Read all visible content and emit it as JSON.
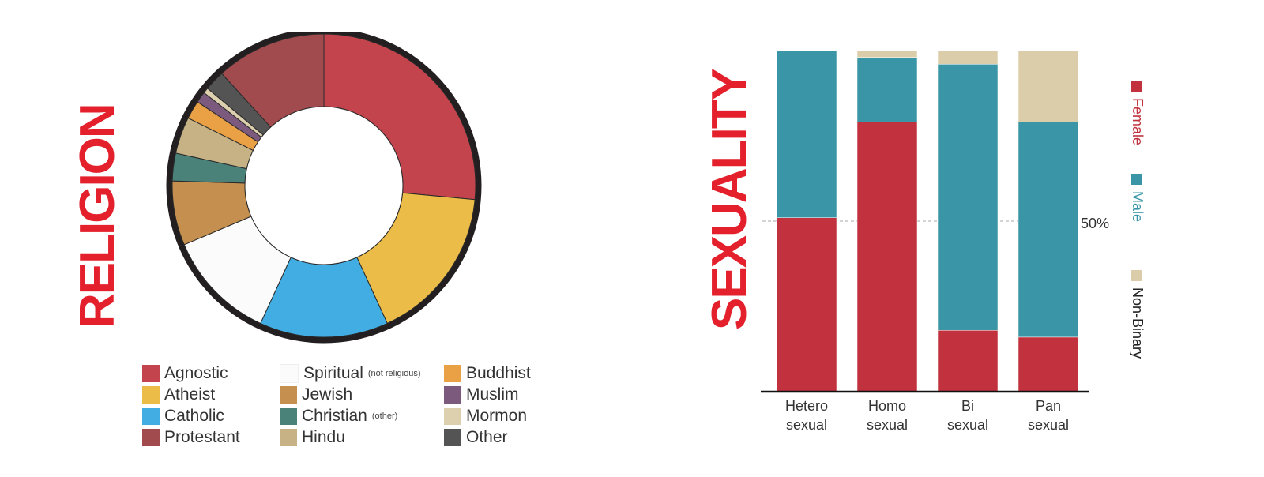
{
  "religion": {
    "title": "RELIGION",
    "chart_data": {
      "type": "pie",
      "categories": [
        "Protestant",
        "Agnostic",
        "Atheist",
        "Catholic",
        "Spiritual",
        "Jewish",
        "Christian",
        "Hindu",
        "Buddhist",
        "Muslim",
        "Mormon",
        "Other"
      ],
      "values": [
        12,
        27,
        17,
        14,
        12,
        7,
        3,
        4,
        2,
        1.2,
        0.6,
        2.2
      ],
      "colors": [
        "#a24b4e",
        "#c3444d",
        "#ecbc48",
        "#42ade2",
        "#fbfbfb",
        "#c5904f",
        "#4a8179",
        "#c7b286",
        "#eaa045",
        "#7b5a7e",
        "#ddd0af",
        "#545454"
      ]
    },
    "legend": [
      {
        "label": "Agnostic",
        "note": "",
        "color": "#c3444d"
      },
      {
        "label": "Atheist",
        "note": "",
        "color": "#ecbc48"
      },
      {
        "label": "Catholic",
        "note": "",
        "color": "#42ade2"
      },
      {
        "label": "Protestant",
        "note": "",
        "color": "#a24b4e"
      },
      {
        "label": "Spiritual",
        "note": "(not religious)",
        "color": "#fbfbfb"
      },
      {
        "label": "Jewish",
        "note": "",
        "color": "#c5904f"
      },
      {
        "label": "Christian",
        "note": "(other)",
        "color": "#4a8179"
      },
      {
        "label": "Hindu",
        "note": "",
        "color": "#c7b286"
      },
      {
        "label": "Buddhist",
        "note": "",
        "color": "#eaa045"
      },
      {
        "label": "Muslim",
        "note": "",
        "color": "#7b5a7e"
      },
      {
        "label": "Mormon",
        "note": "",
        "color": "#ddd0af"
      },
      {
        "label": "Other",
        "note": "",
        "color": "#545454"
      }
    ]
  },
  "sexuality": {
    "title": "SEXUALITY",
    "reference_label": "50%",
    "chart_data": {
      "type": "bar",
      "stacked": true,
      "categories": [
        [
          "Hetero",
          "sexual"
        ],
        [
          "Homo",
          "sexual"
        ],
        [
          "Bi",
          "sexual"
        ],
        [
          "Pan",
          "sexual"
        ]
      ],
      "series": [
        {
          "name": "Female",
          "values": [
            51,
            79,
            18,
            16
          ],
          "color": "#c1323e"
        },
        {
          "name": "Male",
          "values": [
            49,
            19,
            78,
            63
          ],
          "color": "#3a96a6"
        },
        {
          "name": "Non-Binary",
          "values": [
            0,
            2,
            4,
            21
          ],
          "color": "#dccdaa"
        }
      ],
      "ylim": [
        0,
        100
      ],
      "reference_line": 50
    }
  }
}
